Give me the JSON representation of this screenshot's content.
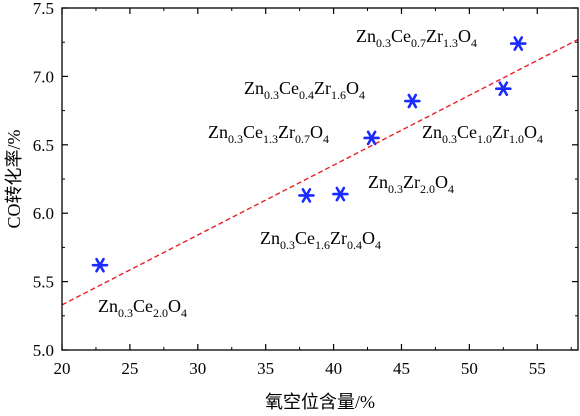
{
  "chart_data": {
    "type": "scatter",
    "xlabel": "氧空位含量/%",
    "ylabel": "CO转化率/%",
    "xlim": [
      20,
      58
    ],
    "ylim": [
      5.0,
      7.5
    ],
    "xticks": [
      "20",
      "25",
      "30",
      "35",
      "40",
      "45",
      "50",
      "55"
    ],
    "yticks": [
      "5.0",
      "5.5",
      "6.0",
      "6.5",
      "7.0",
      "7.5"
    ],
    "grid": false,
    "marker_color": "#1a2bff",
    "trend_color": "#e8202a",
    "trendline": {
      "style": "dashed",
      "points": [
        [
          20,
          5.33
        ],
        [
          58,
          7.27
        ]
      ]
    },
    "points": [
      {
        "x": 22.8,
        "y": 5.62,
        "label": [
          [
            "Zn",
            ""
          ],
          [
            "",
            "0.3"
          ],
          [
            "Ce",
            ""
          ],
          [
            "",
            "2.0"
          ],
          [
            "O",
            ""
          ],
          [
            "",
            "4"
          ]
        ]
      },
      {
        "x": 38.0,
        "y": 6.13,
        "label": [
          [
            "Zn",
            ""
          ],
          [
            "",
            "0.3"
          ],
          [
            "Ce",
            ""
          ],
          [
            "",
            "1.6"
          ],
          [
            "Zr",
            ""
          ],
          [
            "",
            "0.4"
          ],
          [
            "O",
            ""
          ],
          [
            "",
            "4"
          ]
        ]
      },
      {
        "x": 40.5,
        "y": 6.14,
        "label": [
          [
            "Zn",
            ""
          ],
          [
            "",
            "0.3"
          ],
          [
            "Zr",
            ""
          ],
          [
            "",
            "2.0"
          ],
          [
            "O",
            ""
          ],
          [
            "",
            "4"
          ]
        ]
      },
      {
        "x": 42.8,
        "y": 6.55,
        "label": [
          [
            "Zn",
            ""
          ],
          [
            "",
            "0.3"
          ],
          [
            "Ce",
            ""
          ],
          [
            "",
            "1.3"
          ],
          [
            "Zr",
            ""
          ],
          [
            "",
            "0.7"
          ],
          [
            "O",
            ""
          ],
          [
            "",
            "4"
          ]
        ]
      },
      {
        "x": 45.8,
        "y": 6.82,
        "label": [
          [
            "Zn",
            ""
          ],
          [
            "",
            "0.3"
          ],
          [
            "Ce",
            ""
          ],
          [
            "",
            "0.4"
          ],
          [
            "Zr",
            ""
          ],
          [
            "",
            "1.6"
          ],
          [
            "O",
            ""
          ],
          [
            "",
            "4"
          ]
        ]
      },
      {
        "x": 52.5,
        "y": 6.91,
        "label": [
          [
            "Zn",
            ""
          ],
          [
            "",
            "0.3"
          ],
          [
            "Ce",
            ""
          ],
          [
            "",
            "1.0"
          ],
          [
            "Zr",
            ""
          ],
          [
            "",
            "1.0"
          ],
          [
            "O",
            ""
          ],
          [
            "",
            "4"
          ]
        ]
      },
      {
        "x": 53.6,
        "y": 7.24,
        "label": [
          [
            "Zn",
            ""
          ],
          [
            "",
            "0.3"
          ],
          [
            "Ce",
            ""
          ],
          [
            "",
            "0.7"
          ],
          [
            "Zr",
            ""
          ],
          [
            "",
            "1.3"
          ],
          [
            "O",
            ""
          ],
          [
            "",
            "4"
          ]
        ]
      }
    ]
  }
}
